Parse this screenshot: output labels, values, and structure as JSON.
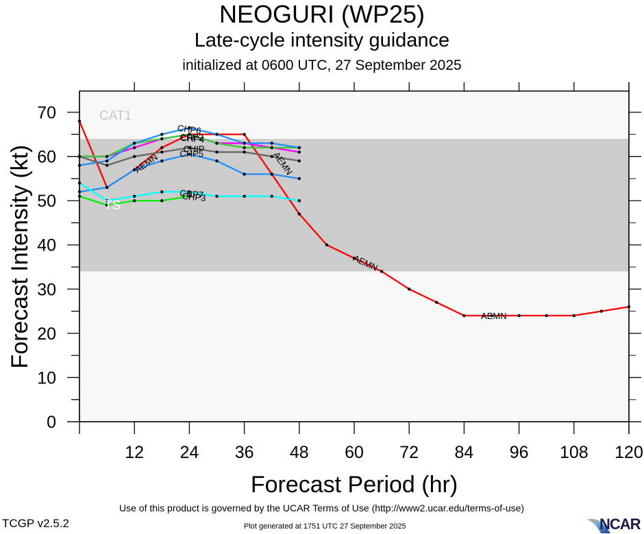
{
  "header": {
    "title": "NEOGURI (WP25)",
    "subtitle": "Late-cycle intensity guidance",
    "init_line": "initialized at 0600 UTC, 27 September 2025"
  },
  "footer": {
    "terms": "Use of this product is governed by the UCAR Terms of Use (http://www2.ucar.edu/terms-of-use)",
    "version": "TCGP v2.5.2",
    "generated": "Plot generated at 1751 UTC   27 September 2025",
    "logo_text": "NCAR"
  },
  "chart_data": {
    "type": "line",
    "title": "NEOGURI (WP25)",
    "xlabel": "Forecast Period (hr)",
    "ylabel": "Forecast Intensity (kt)",
    "xlim": [
      0,
      120
    ],
    "ylim": [
      0,
      70
    ],
    "xticks": [
      12,
      24,
      36,
      48,
      60,
      72,
      84,
      96,
      108,
      120
    ],
    "yticks": [
      0,
      10,
      20,
      30,
      40,
      50,
      60,
      70
    ],
    "grid": false,
    "bands": [
      {
        "name": "TS",
        "from": 34,
        "to": 64,
        "color": "#cccccc",
        "label": "TS",
        "label_color": "#ffffff"
      },
      {
        "name": "CAT1",
        "from": 64,
        "to": 82,
        "color": "#f8f8f8",
        "label": "CAT1",
        "label_color": "#c8c8c8"
      }
    ],
    "series": [
      {
        "name": "AEMN",
        "color": "#ff0000",
        "x": [
          0,
          6,
          12,
          18,
          24,
          30,
          36,
          42,
          48,
          54,
          60,
          66,
          72,
          78,
          84,
          90,
          96,
          102,
          108,
          114,
          120
        ],
        "values": [
          68,
          53,
          57,
          62,
          65,
          65,
          65,
          56,
          47,
          40,
          37,
          34,
          30,
          27,
          24,
          24,
          24,
          24,
          24,
          25,
          26
        ]
      },
      {
        "name": "CHP2",
        "color": "#ff00ff",
        "x": [
          0,
          6,
          12,
          18,
          24,
          30,
          36,
          42,
          48
        ],
        "values": [
          60,
          60,
          62,
          64,
          65,
          63,
          63,
          62,
          61
        ]
      },
      {
        "name": "CHP4",
        "color": "#33cc33",
        "x": [
          0,
          6,
          12,
          18,
          24,
          30,
          36,
          42,
          48
        ],
        "values": [
          60,
          60,
          63,
          64,
          65,
          63,
          62,
          62,
          62
        ]
      },
      {
        "name": "CHP6",
        "color": "#1e90ff",
        "x": [
          0,
          6,
          12,
          18,
          24,
          30,
          36,
          42,
          48
        ],
        "values": [
          58,
          59,
          63,
          65,
          66.5,
          65,
          63,
          63,
          62
        ]
      },
      {
        "name": "CHIP",
        "color": "#666666",
        "x": [
          0,
          6,
          12,
          18,
          24,
          30,
          36,
          42,
          48
        ],
        "values": [
          60,
          58,
          60,
          61,
          62,
          61,
          61,
          60,
          59
        ]
      },
      {
        "name": "CHP5",
        "color": "#1e90ff",
        "x": [
          0,
          6,
          12,
          18,
          24,
          30,
          36,
          42,
          48
        ],
        "values": [
          52,
          53,
          57,
          59,
          60.5,
          59,
          56,
          56,
          55
        ]
      },
      {
        "name": "CHP7",
        "color": "#00ffff",
        "x": [
          0,
          6,
          12,
          18,
          24,
          30,
          36,
          42,
          48
        ],
        "values": [
          54,
          50,
          51,
          52,
          52,
          51,
          51,
          51,
          50
        ]
      },
      {
        "name": "CHP3",
        "color": "#00ee00",
        "x": [
          0,
          6,
          12,
          18,
          24
        ],
        "values": [
          51,
          49,
          50,
          50,
          51
        ]
      }
    ],
    "labels": [
      {
        "text": "AEMN",
        "x": 14.5,
        "y": 58.5,
        "angle": -35
      },
      {
        "text": "CHP6",
        "x": 24,
        "y": 66.2,
        "angle": 8
      },
      {
        "text": "CHP2",
        "x": 24.5,
        "y": 64.4,
        "angle": 0
      },
      {
        "text": "CHP4",
        "x": 24.7,
        "y": 64.1,
        "angle": 5
      },
      {
        "text": "CHIP",
        "x": 25,
        "y": 61.8,
        "angle": 0
      },
      {
        "text": "CHP5",
        "x": 24.5,
        "y": 60.7,
        "angle": 0
      },
      {
        "text": "CHP7",
        "x": 24.5,
        "y": 51.6,
        "angle": 5
      },
      {
        "text": "CHP3",
        "x": 25,
        "y": 50.9,
        "angle": 5
      },
      {
        "text": "AEMN",
        "x": 44.5,
        "y": 58.5,
        "angle": 55
      },
      {
        "text": "AEMN",
        "x": 62.5,
        "y": 36,
        "angle": 25
      },
      {
        "text": "AEMN",
        "x": 90.5,
        "y": 24,
        "angle": 0
      }
    ]
  }
}
